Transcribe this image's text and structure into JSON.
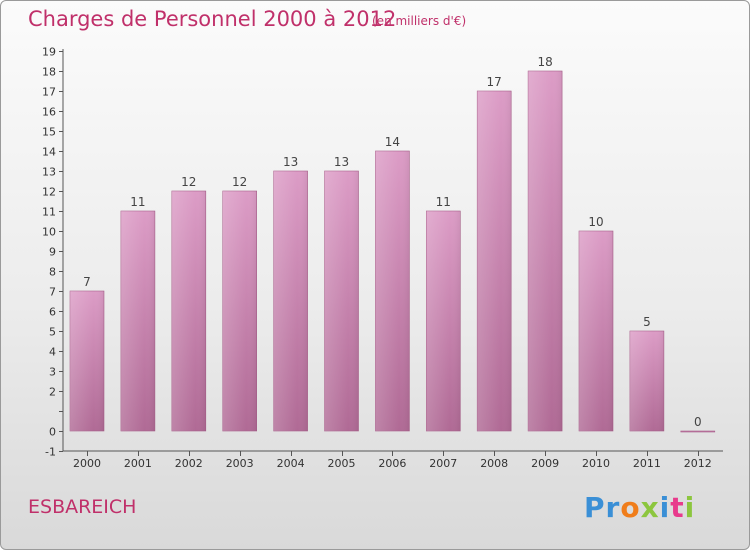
{
  "header": {
    "title": "Charges de Personnel 2000 à 2012",
    "unit": "(en milliers d'€)"
  },
  "footer": {
    "commune": "ESBAREICH",
    "logo_letters": [
      {
        "char": "P",
        "color": "#3a8fd6"
      },
      {
        "char": "r",
        "color": "#3a8fd6"
      },
      {
        "char": "o",
        "color": "#f07d1a"
      },
      {
        "char": "x",
        "color": "#8cc63e"
      },
      {
        "char": "i",
        "color": "#3a8fd6"
      },
      {
        "char": "t",
        "color": "#e83a8c"
      },
      {
        "char": "i",
        "color": "#8cc63e"
      }
    ]
  },
  "chart_data": {
    "type": "bar",
    "title": "Charges de Personnel 2000 à 2012",
    "subtitle": "(en milliers d'€)",
    "categories": [
      "2000",
      "2001",
      "2002",
      "2003",
      "2004",
      "2005",
      "2006",
      "2007",
      "2008",
      "2009",
      "2010",
      "2011",
      "2012"
    ],
    "values": [
      7,
      11,
      12,
      12,
      13,
      13,
      14,
      11,
      17,
      18,
      10,
      5,
      0
    ],
    "data_labels": [
      "7",
      "11",
      "12",
      "12",
      "13",
      "13",
      "14",
      "11",
      "17",
      "18",
      "10",
      "5",
      "0"
    ],
    "ylim": [
      -1,
      19
    ],
    "yticks": [
      -1,
      0,
      1,
      2,
      3,
      4,
      5,
      6,
      7,
      8,
      9,
      10,
      11,
      12,
      13,
      14,
      15,
      16,
      17,
      18,
      19
    ],
    "ytick_labels": [
      "-1",
      "0",
      "",
      "2",
      "3",
      "4",
      "5",
      "6",
      "7",
      "8",
      "9",
      "10",
      "11",
      "12",
      "13",
      "14",
      "15",
      "16",
      "17",
      "18",
      "19"
    ],
    "xlabel": "",
    "ylabel": "",
    "grid": false,
    "legend": "none",
    "bar_color": "#dc9cc6",
    "bar_color_dark": "#b06a95"
  }
}
